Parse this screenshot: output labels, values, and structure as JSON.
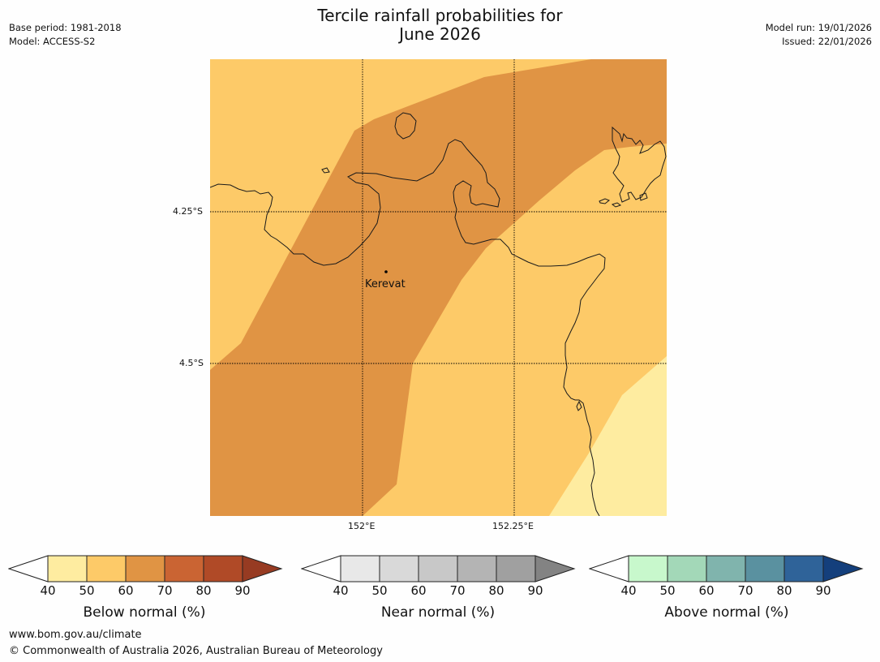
{
  "header": {
    "left_line1": "Base period: 1981-2018",
    "left_line2": "Model: ACCESS-S2",
    "title_line1": "Tercile rainfall probabilities for",
    "title_line2": "June 2026",
    "right_line1": "Model run: 19/01/2026",
    "right_line2": "Issued: 22/01/2026"
  },
  "map": {
    "lat_labels": [
      "4.25°S",
      "4.5°S"
    ],
    "lon_labels": [
      "152°E",
      "152.25°E"
    ],
    "place": "Kerevat",
    "region_colors": {
      "below_50_60": "#fdca68",
      "below_60_70": "#e09444",
      "below_40_50": "#feeca0"
    }
  },
  "colorbars": [
    {
      "name": "below",
      "label": "Below normal (%)",
      "ticks": [
        "40",
        "50",
        "60",
        "70",
        "80",
        "90"
      ],
      "colors": [
        "#feeca0",
        "#fdca68",
        "#e09444",
        "#ca6433",
        "#b04a27",
        "#973b22"
      ]
    },
    {
      "name": "near",
      "label": "Near normal (%)",
      "ticks": [
        "40",
        "50",
        "60",
        "70",
        "80",
        "90"
      ],
      "colors": [
        "#e8e8e8",
        "#d9d9d9",
        "#c8c8c8",
        "#b4b4b4",
        "#a0a0a0",
        "#838383"
      ]
    },
    {
      "name": "above",
      "label": "Above normal (%)",
      "ticks": [
        "40",
        "50",
        "60",
        "70",
        "80",
        "90"
      ],
      "colors": [
        "#c8f8cc",
        "#a3d8b8",
        "#80b4ad",
        "#5a91a0",
        "#2f6399",
        "#143f7c"
      ]
    }
  ],
  "footer": {
    "url": "www.bom.gov.au/climate",
    "copyright": "© Commonwealth of Australia 2026, Australian Bureau of Meteorology"
  }
}
